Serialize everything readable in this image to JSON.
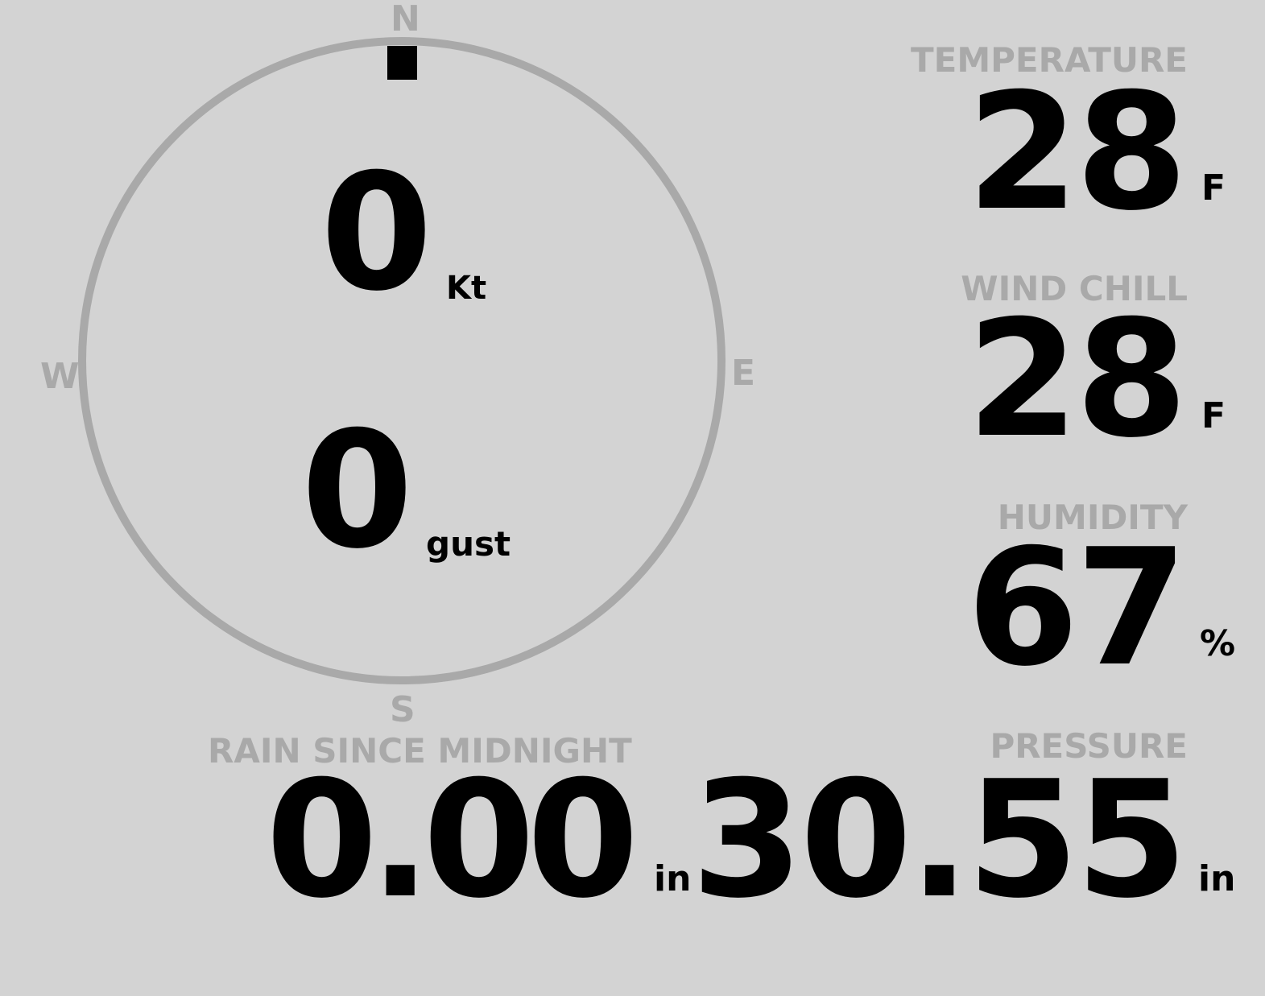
{
  "colors": {
    "background": "#d3d3d3",
    "label": "#a9a9a9",
    "value": "#000000"
  },
  "compass": {
    "north": "N",
    "south": "S",
    "east": "E",
    "west": "W",
    "wind_direction_deg": 0
  },
  "wind": {
    "speed": "0",
    "speed_unit": "Kt",
    "gust": "0",
    "gust_unit": "gust"
  },
  "temperature": {
    "label": "TEMPERATURE",
    "value": "28",
    "unit": "F"
  },
  "wind_chill": {
    "label": "WIND CHILL",
    "value": "28",
    "unit": "F"
  },
  "humidity": {
    "label": "HUMIDITY",
    "value": "67",
    "unit": "%"
  },
  "rain": {
    "label": "RAIN SINCE MIDNIGHT",
    "value": "0.00",
    "unit": "in"
  },
  "pressure": {
    "label": "PRESSURE",
    "value": "30.55",
    "unit": "in"
  }
}
